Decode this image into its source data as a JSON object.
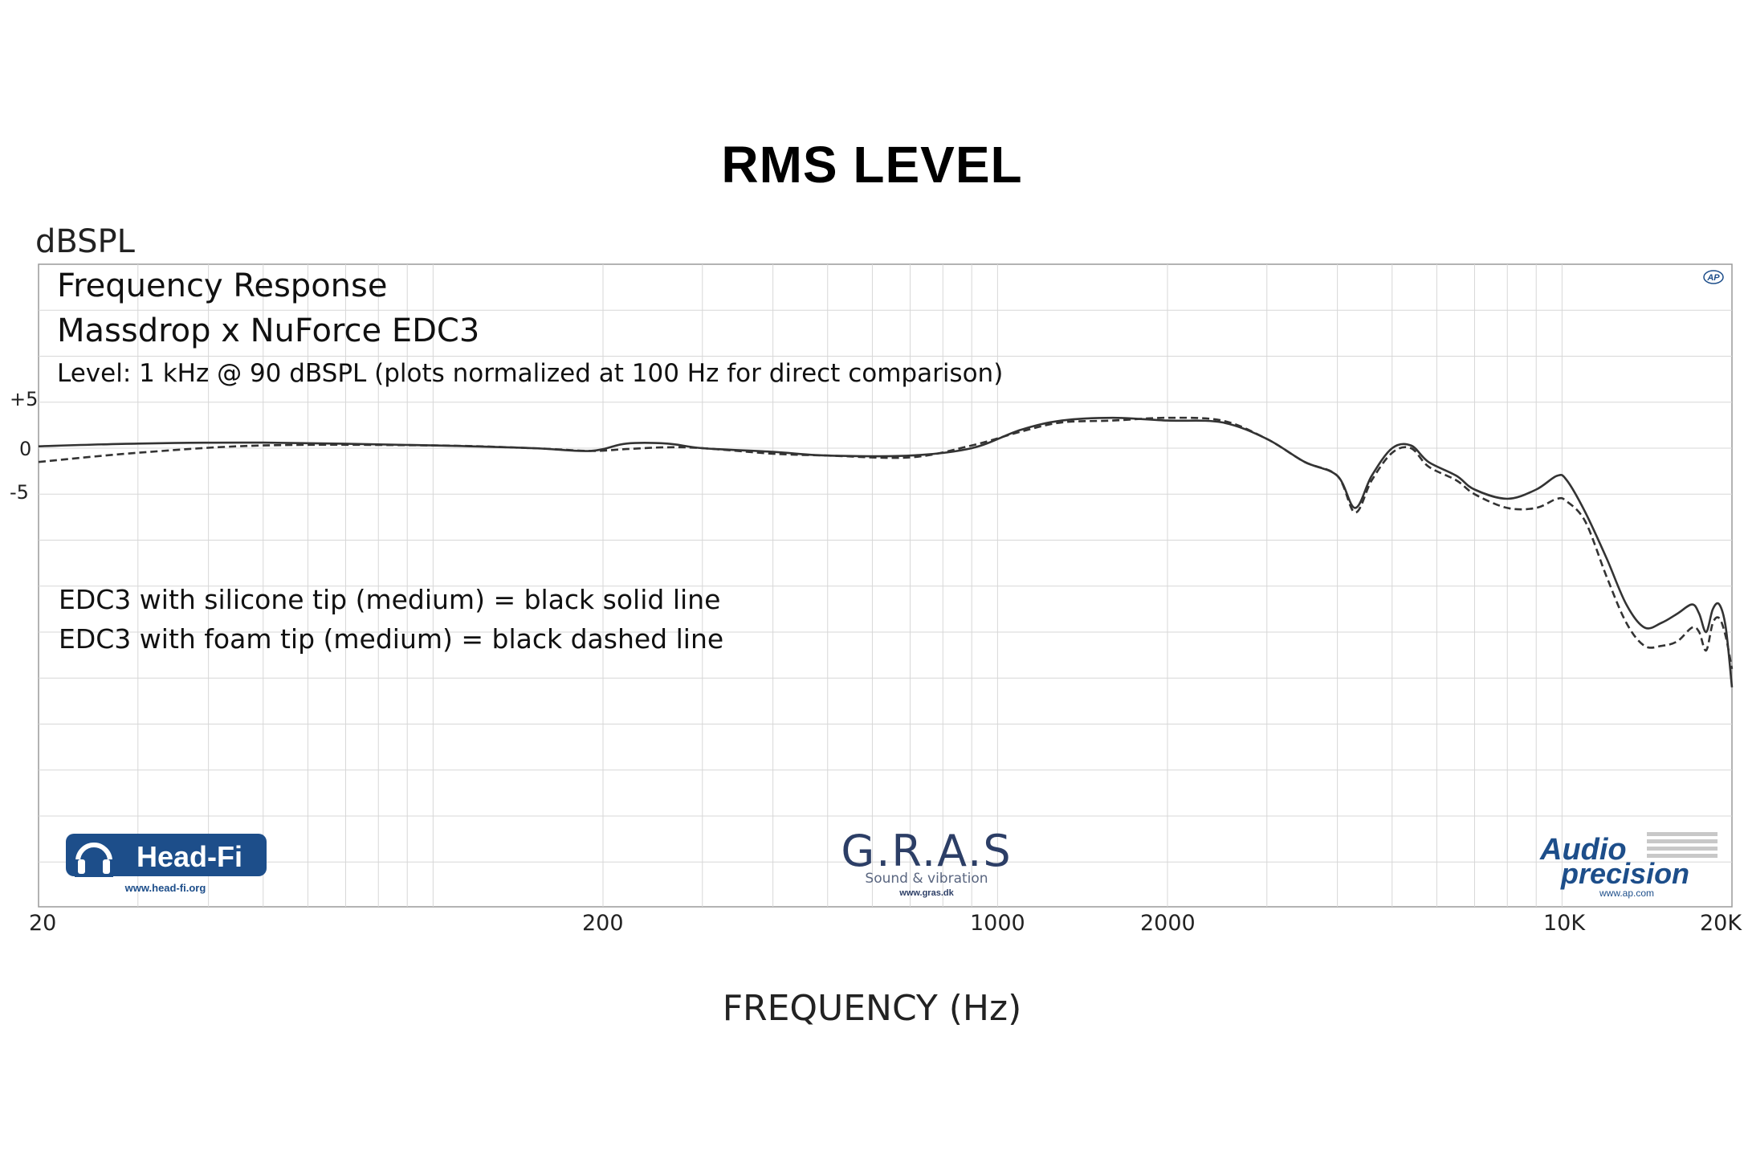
{
  "chart_data": {
    "type": "line",
    "title": "RMS LEVEL",
    "ylabel": "dBSPL",
    "xlabel": "FREQUENCY (Hz)",
    "x_scale": "log",
    "xlim": [
      20,
      20000
    ],
    "ylim": [
      -50,
      20
    ],
    "x_ticks": [
      {
        "value": 20,
        "label": "20"
      },
      {
        "value": 200,
        "label": "200"
      },
      {
        "value": 1000,
        "label": "1000"
      },
      {
        "value": 2000,
        "label": "2000"
      },
      {
        "value": 10000,
        "label": "10K"
      },
      {
        "value": 20000,
        "label": "20K"
      }
    ],
    "y_ticks": [
      {
        "value": 5,
        "label": "+5"
      },
      {
        "value": 0,
        "label": "0"
      },
      {
        "value": -5,
        "label": "-5"
      }
    ],
    "grid": true,
    "annotations": {
      "heading": "Frequency Response",
      "model": "Massdrop x NuForce EDC3",
      "level": "Level: 1 kHz @ 90 dBSPL (plots normalized at 100 Hz for direct comparison)",
      "legend_solid": "EDC3 with silicone tip (medium) = black solid line",
      "legend_dashed": "EDC3 with foam tip (medium) = black dashed line"
    },
    "series": [
      {
        "name": "EDC3 with silicone tip (medium)",
        "style": "solid",
        "color": "#333333",
        "points": [
          [
            20,
            0.2
          ],
          [
            30,
            0.5
          ],
          [
            50,
            0.6
          ],
          [
            100,
            0.3
          ],
          [
            150,
            0
          ],
          [
            190,
            -0.3
          ],
          [
            220,
            0.5
          ],
          [
            260,
            0.5
          ],
          [
            300,
            0
          ],
          [
            400,
            -0.4
          ],
          [
            500,
            -0.8
          ],
          [
            700,
            -0.8
          ],
          [
            900,
            0
          ],
          [
            1100,
            2
          ],
          [
            1300,
            3
          ],
          [
            1600,
            3.3
          ],
          [
            2000,
            3
          ],
          [
            2500,
            2.8
          ],
          [
            3000,
            1
          ],
          [
            3500,
            -1.5
          ],
          [
            4000,
            -3
          ],
          [
            4300,
            -6.5
          ],
          [
            4600,
            -3
          ],
          [
            5000,
            0
          ],
          [
            5400,
            0.3
          ],
          [
            5800,
            -1.5
          ],
          [
            6500,
            -3
          ],
          [
            7000,
            -4.5
          ],
          [
            8000,
            -5.5
          ],
          [
            9000,
            -4.5
          ],
          [
            9800,
            -3
          ],
          [
            10200,
            -3.5
          ],
          [
            11000,
            -7
          ],
          [
            12000,
            -12
          ],
          [
            13000,
            -17
          ],
          [
            14000,
            -19.5
          ],
          [
            15000,
            -19
          ],
          [
            16000,
            -18
          ],
          [
            17000,
            -17
          ],
          [
            17500,
            -18
          ],
          [
            18000,
            -20
          ],
          [
            18500,
            -17.5
          ],
          [
            19000,
            -17
          ],
          [
            19500,
            -19.5
          ],
          [
            20000,
            -26
          ]
        ]
      },
      {
        "name": "EDC3 with foam tip (medium)",
        "style": "dashed",
        "color": "#333333",
        "points": [
          [
            20,
            -1.5
          ],
          [
            30,
            -0.5
          ],
          [
            50,
            0.3
          ],
          [
            100,
            0.3
          ],
          [
            150,
            0
          ],
          [
            190,
            -0.3
          ],
          [
            220,
            -0.1
          ],
          [
            260,
            0.1
          ],
          [
            300,
            0
          ],
          [
            400,
            -0.6
          ],
          [
            500,
            -0.8
          ],
          [
            700,
            -1
          ],
          [
            900,
            0.3
          ],
          [
            1100,
            1.8
          ],
          [
            1300,
            2.8
          ],
          [
            1600,
            3
          ],
          [
            2000,
            3.3
          ],
          [
            2500,
            3
          ],
          [
            3000,
            1
          ],
          [
            3500,
            -1.5
          ],
          [
            4000,
            -3
          ],
          [
            4300,
            -7
          ],
          [
            4600,
            -3.5
          ],
          [
            5000,
            -0.5
          ],
          [
            5400,
            0
          ],
          [
            5800,
            -2
          ],
          [
            6500,
            -3.5
          ],
          [
            7000,
            -5
          ],
          [
            8000,
            -6.5
          ],
          [
            9000,
            -6.5
          ],
          [
            9800,
            -5.5
          ],
          [
            10200,
            -5.8
          ],
          [
            11000,
            -8
          ],
          [
            12000,
            -14
          ],
          [
            13000,
            -19
          ],
          [
            14000,
            -21.5
          ],
          [
            15000,
            -21.5
          ],
          [
            16000,
            -21
          ],
          [
            17000,
            -19.5
          ],
          [
            17500,
            -20
          ],
          [
            18000,
            -22
          ],
          [
            18500,
            -19
          ],
          [
            19000,
            -18.5
          ],
          [
            19500,
            -20.5
          ],
          [
            20000,
            -24
          ]
        ]
      }
    ]
  },
  "logos": {
    "headfi": {
      "name": "Head-Fi",
      "url": "www.head-fi.org"
    },
    "gras": {
      "name": "G.R.A.S",
      "tagline": "Sound & vibration",
      "url": "www.gras.dk"
    },
    "ap": {
      "line1": "Audio",
      "line2": "precision",
      "url": "www.ap.com",
      "badge": "AP"
    }
  },
  "colors": {
    "grid": "#d7d7d7",
    "frame": "#9a9a9a",
    "line": "#333333",
    "logo_blue": "#1d4e8a"
  }
}
